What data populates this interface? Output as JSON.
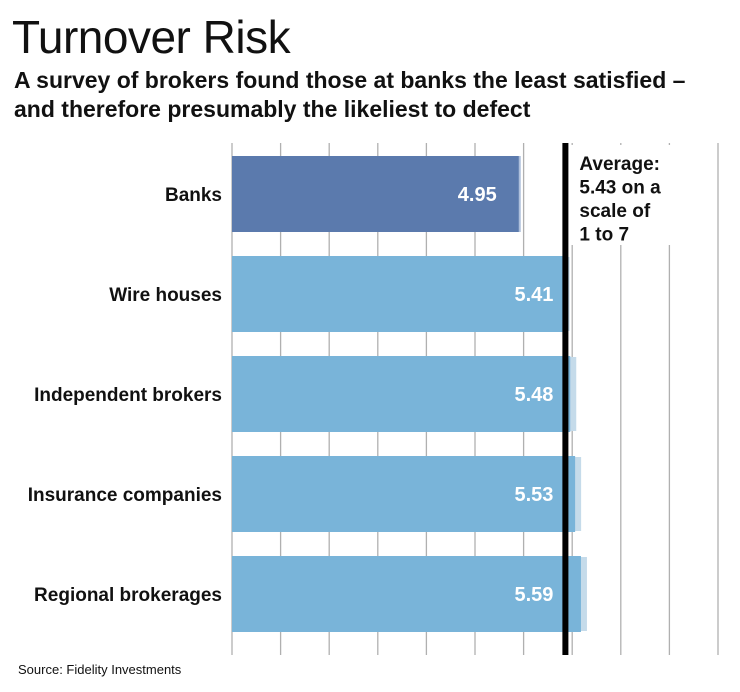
{
  "title": "Turnover Risk",
  "subtitle": "A survey of brokers found those at banks the least satisfied – and therefore presumably the likeliest to defect",
  "source": "Source: Fidelity Investments",
  "chart_data": {
    "type": "bar",
    "orientation": "horizontal",
    "title": "Turnover Risk",
    "categories": [
      "Banks",
      "Wire houses",
      "Independent brokers",
      "Insurance companies",
      "Regional brokerages"
    ],
    "values": [
      4.95,
      5.41,
      5.48,
      5.53,
      5.59
    ],
    "value_labels": [
      "4.95",
      "5.41",
      "5.48",
      "5.53",
      "5.59"
    ],
    "xlim": [
      2.0,
      7.0
    ],
    "reference_line": {
      "value": 5.43,
      "label_lines": [
        "Average:",
        "5.43 on a",
        "scale of",
        "1 to 7"
      ]
    },
    "grid": true,
    "colors": {
      "highlight": "#5b7aad",
      "bar": "#79b4d9",
      "bar_shadow": "#c5dbea",
      "grid": "#b0b0b0",
      "reference_line": "#000000",
      "label_text": "#ffffff"
    }
  }
}
